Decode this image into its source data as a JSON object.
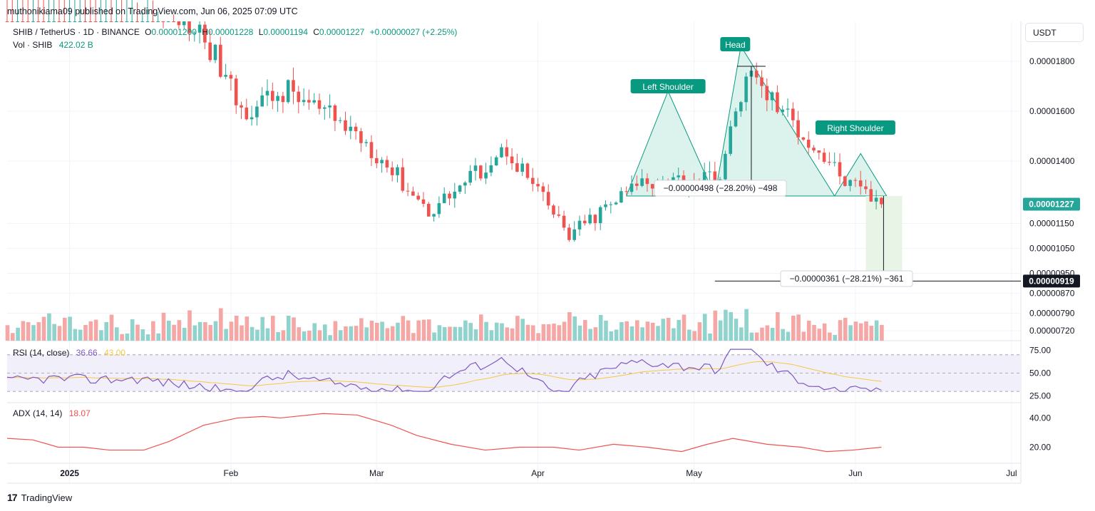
{
  "header": {
    "publisher": "muthonikiama09 published on TradingView.com, Jun 06, 2025 07:09 UTC",
    "symbol": "SHIB / TetherUS · 1D · BINANCE",
    "ohlc": {
      "o_label": "O",
      "o": "0.00001200",
      "h_label": "H",
      "h": "0.00001228",
      "l_label": "L",
      "l": "0.00001194",
      "c_label": "C",
      "c": "0.00001227",
      "change": "+0.00000027 (+2.25%)"
    },
    "volume_label": "Vol · SHIB",
    "volume_value": "422.02 B",
    "currency": "USDT"
  },
  "footer": {
    "brand": "TradingView"
  },
  "colors": {
    "up": "#26a69a",
    "down": "#ef5350",
    "vol_up": "#8fd3cc",
    "vol_down": "#f4a7a5",
    "rsi": "#7e57c2",
    "rsi_ma": "#f6c744",
    "adx": "#ef5350",
    "pattern": "#089981",
    "target_box": "#e6f4e3"
  },
  "chart_data": [
    {
      "type": "candlestick",
      "title": "SHIB / TetherUS · 1D · BINANCE",
      "x": [
        "2024-12-20",
        "2025-06-06"
      ],
      "xaxis_ticks": [
        "2025",
        "Feb",
        "Mar",
        "Apr",
        "May",
        "Jun",
        "Jul"
      ],
      "yaxis_ticks": [
        "0.00001800",
        "0.00001600",
        "0.00001400",
        "0.00001150",
        "0.00001050",
        "0.00000950",
        "0.00000870",
        "0.00000790",
        "0.00000720"
      ],
      "current_price_label": "0.00001227",
      "target_price_label": "0.00000919",
      "y_range": [
        6.8e-06,
        1.96e-05
      ],
      "key_points": [
        {
          "date": "2024-12-27",
          "close": 2.2e-05
        },
        {
          "date": "2025-01-15",
          "close": 2.1e-05
        },
        {
          "date": "2025-01-27",
          "close": 1.9e-05
        },
        {
          "date": "2025-02-03",
          "close": 1.6e-05
        },
        {
          "date": "2025-02-12",
          "close": 1.68e-05
        },
        {
          "date": "2025-02-26",
          "close": 1.5e-05
        },
        {
          "date": "2025-03-11",
          "close": 1.2e-05
        },
        {
          "date": "2025-03-26",
          "close": 1.45e-05
        },
        {
          "date": "2025-04-07",
          "close": 1.1e-05
        },
        {
          "date": "2025-04-21",
          "close": 1.32e-05
        },
        {
          "date": "2025-05-06",
          "close": 1.33e-05
        },
        {
          "date": "2025-05-11",
          "close": 1.76e-05
        },
        {
          "date": "2025-05-31",
          "close": 1.3e-05
        },
        {
          "date": "2025-06-06",
          "close": 1.227e-05
        }
      ]
    },
    {
      "type": "line",
      "title": "RSI (14, close)",
      "values_label": "36.66",
      "ma_label": "43.00",
      "yaxis_ticks": [
        "75.00",
        "50.00",
        "25.00"
      ],
      "y_range": [
        20,
        80
      ]
    },
    {
      "type": "line",
      "title": "ADX (14, 14)",
      "values_label": "18.07",
      "yaxis_ticks": [
        "40.00",
        "20.00"
      ],
      "y_range": [
        10,
        48
      ]
    }
  ],
  "annotations": {
    "left_shoulder": "Left Shoulder",
    "head": "Head",
    "right_shoulder": "Right Shoulder",
    "head_measure": "−0.00000498 (−28.20%) −498",
    "target_measure": "−0.00000361 (−28.21%) −361"
  }
}
